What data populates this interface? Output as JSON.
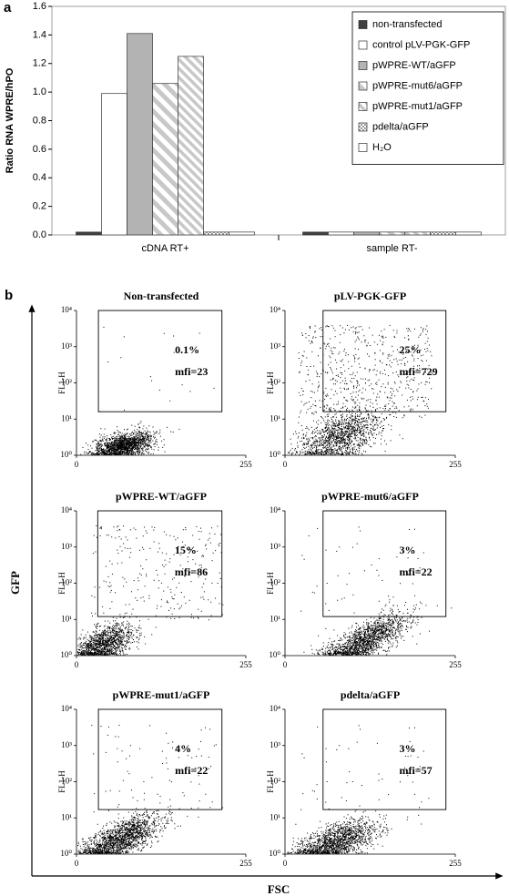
{
  "panel_a": "a",
  "panel_b": "b",
  "panel_b_axes": {
    "y_label": "GFP",
    "x_label": "FSC"
  },
  "chart_data": [
    {
      "type": "bar",
      "ylabel": "Ratio RNA WPRE/hPO",
      "categories": [
        "cDNA RT+",
        "sample RT-"
      ],
      "ylim": [
        0,
        1.6
      ],
      "yticks": [
        {
          "value": 0,
          "label": "0.0"
        },
        0.2,
        0.4,
        0.6,
        0.8,
        {
          "value": 1,
          "label": "1.0"
        },
        1.2,
        1.4,
        1.6
      ],
      "legend": "top-right",
      "series": [
        {
          "name": "non-transfected",
          "color": "#404040",
          "pattern": "solid",
          "values": [
            0.02,
            0.02
          ]
        },
        {
          "name": "control pLV-PGK-GFP",
          "color": "#ffffff",
          "pattern": "solid",
          "values": [
            0.99,
            0.02
          ]
        },
        {
          "name": "pWPRE-WT/aGFP",
          "color": "#b3b3b3",
          "pattern": "solid",
          "values": [
            1.41,
            0.02
          ]
        },
        {
          "name": "pWPRE-mut6/aGFP",
          "color": "#c8c8c8",
          "pattern": "diagonal-wide",
          "values": [
            1.06,
            0.02
          ]
        },
        {
          "name": "pWPRE-mut1/aGFP",
          "color": "#c8c8c8",
          "pattern": "diagonal",
          "values": [
            1.25,
            0.02
          ]
        },
        {
          "name": "pdelta/aGFP",
          "color": "#9a9a9a",
          "pattern": "checker",
          "values": [
            0.02,
            0.02
          ]
        },
        {
          "name": "H₂O",
          "color": "#ffffff",
          "pattern": "solid",
          "values": [
            0.02,
            0.02
          ]
        }
      ]
    },
    {
      "type": "scatter",
      "title": "Non-transfected",
      "ylabel": "FL1-H",
      "xlim": [
        0,
        255
      ],
      "xticks": [
        0,
        255
      ],
      "log_y": true,
      "ylim": [
        1,
        10000
      ],
      "yticks": [
        {
          "value": 1,
          "label": "10⁰"
        },
        {
          "value": 10,
          "label": "10¹"
        },
        {
          "value": 100,
          "label": "10²"
        },
        {
          "value": 1000,
          "label": "10³"
        },
        {
          "value": 10000,
          "label": "10⁴"
        }
      ],
      "gate": {
        "x": [
          33,
          219
        ],
        "y": [
          16,
          10000
        ]
      },
      "annotations": [
        "0.1%",
        "mfi=23"
      ]
    },
    {
      "type": "scatter",
      "title": "pLV-PGK-GFP",
      "ylabel": "FL1-H",
      "xlim": [
        0,
        255
      ],
      "xticks": [
        0,
        255
      ],
      "log_y": true,
      "ylim": [
        1,
        10000
      ],
      "yticks": [
        {
          "value": 1,
          "label": "10⁰"
        },
        {
          "value": 10,
          "label": "10¹"
        },
        {
          "value": 100,
          "label": "10²"
        },
        {
          "value": 1000,
          "label": "10³"
        },
        {
          "value": 10000,
          "label": "10⁴"
        }
      ],
      "gate": {
        "x": [
          57,
          241
        ],
        "y": [
          16,
          10000
        ]
      },
      "annotations": [
        "25%",
        "mfi=729"
      ]
    },
    {
      "type": "scatter",
      "title": "pWPRE-WT/aGFP",
      "ylabel": "FL1-H",
      "xlim": [
        0,
        255
      ],
      "xticks": [
        0,
        255
      ],
      "log_y": true,
      "ylim": [
        1,
        10000
      ],
      "yticks": [
        {
          "value": 1,
          "label": "10⁰"
        },
        {
          "value": 10,
          "label": "10¹"
        },
        {
          "value": 100,
          "label": "10²"
        },
        {
          "value": 1000,
          "label": "10³"
        },
        {
          "value": 10000,
          "label": "10⁴"
        }
      ],
      "gate": {
        "x": [
          32,
          219
        ],
        "y": [
          12,
          10000
        ]
      },
      "annotations": [
        "15%",
        "mfi=86"
      ]
    },
    {
      "type": "scatter",
      "title": "pWPRE-mut6/aGFP",
      "ylabel": "FL1-H",
      "xlim": [
        0,
        255
      ],
      "xticks": [
        0,
        255
      ],
      "log_y": true,
      "ylim": [
        1,
        10000
      ],
      "yticks": [
        {
          "value": 1,
          "label": "10⁰"
        },
        {
          "value": 10,
          "label": "10¹"
        },
        {
          "value": 100,
          "label": "10²"
        },
        {
          "value": 1000,
          "label": "10³"
        },
        {
          "value": 10000,
          "label": "10⁴"
        }
      ],
      "gate": {
        "x": [
          57,
          241
        ],
        "y": [
          12,
          10000
        ]
      },
      "annotations": [
        "3%",
        "mfi=22"
      ]
    },
    {
      "type": "scatter",
      "title": "pWPRE-mut1/aGFP",
      "ylabel": "FL1-H",
      "xlim": [
        0,
        255
      ],
      "xticks": [
        0,
        255
      ],
      "log_y": true,
      "ylim": [
        1,
        10000
      ],
      "yticks": [
        {
          "value": 1,
          "label": "10⁰"
        },
        {
          "value": 10,
          "label": "10¹"
        },
        {
          "value": 100,
          "label": "10²"
        },
        {
          "value": 1000,
          "label": "10³"
        },
        {
          "value": 10000,
          "label": "10⁴"
        }
      ],
      "gate": {
        "x": [
          33,
          219
        ],
        "y": [
          17,
          10000
        ]
      },
      "annotations": [
        "4%",
        "mfi=22"
      ]
    },
    {
      "type": "scatter",
      "title": "pdelta/aGFP",
      "ylabel": "FL1-H",
      "xlim": [
        0,
        255
      ],
      "xticks": [
        0,
        255
      ],
      "log_y": true,
      "ylim": [
        1,
        10000
      ],
      "yticks": [
        {
          "value": 1,
          "label": "10⁰"
        },
        {
          "value": 10,
          "label": "10¹"
        },
        {
          "value": 100,
          "label": "10²"
        },
        {
          "value": 1000,
          "label": "10³"
        },
        {
          "value": 10000,
          "label": "10⁴"
        }
      ],
      "gate": {
        "x": [
          57,
          241
        ],
        "y": [
          17,
          10000
        ]
      },
      "annotations": [
        "3%",
        "mfi=57"
      ]
    }
  ]
}
